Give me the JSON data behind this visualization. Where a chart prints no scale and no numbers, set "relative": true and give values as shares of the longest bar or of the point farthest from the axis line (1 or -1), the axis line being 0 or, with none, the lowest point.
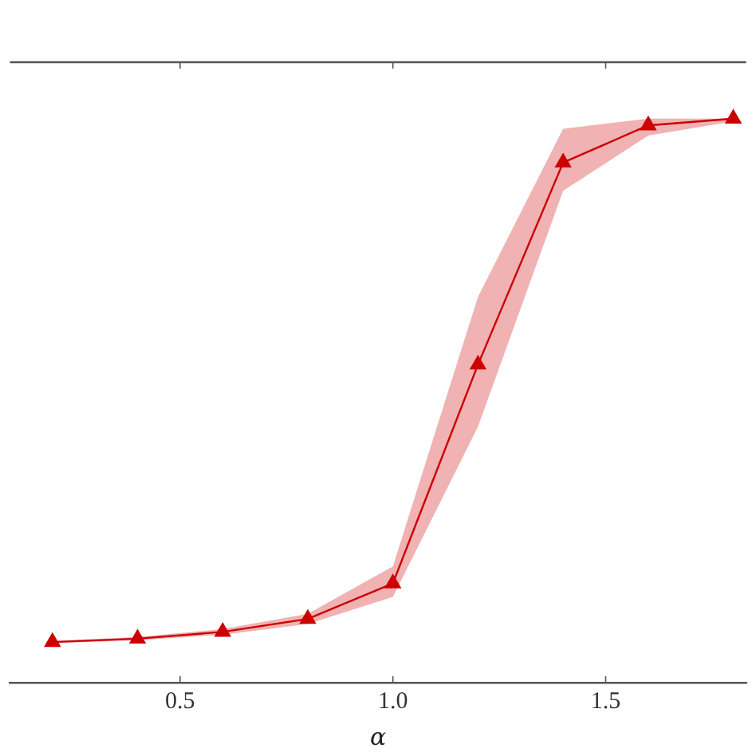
{
  "chart_data": {
    "type": "line",
    "xlabel": "α",
    "relative": true,
    "x": [
      0.2,
      0.4,
      0.6,
      0.8,
      1.0,
      1.2,
      1.4,
      1.6,
      1.8
    ],
    "xlim": [
      0.1,
      1.83
    ],
    "xticks": [
      {
        "value": 0.5,
        "label": "0.5"
      },
      {
        "value": 1.0,
        "label": "1.0"
      },
      {
        "value": 1.5,
        "label": "1.5"
      }
    ],
    "marker": "triangle",
    "grid": false,
    "legend": false,
    "series": [
      {
        "color": "#cc0000",
        "values": [
          0.072,
          0.078,
          0.09,
          0.113,
          0.176,
          0.564,
          0.922,
          0.988,
          1
        ],
        "lower": [
          0.07,
          0.075,
          0.085,
          0.104,
          0.152,
          0.454,
          0.872,
          0.97,
          0.995
        ],
        "upper": [
          0.074,
          0.081,
          0.095,
          0.122,
          0.206,
          0.684,
          0.982,
          1,
          1
        ]
      }
    ]
  }
}
